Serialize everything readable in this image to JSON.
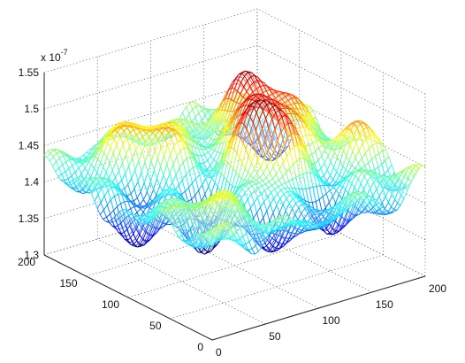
{
  "chart_data": {
    "type": "surface",
    "title": "",
    "xlabel": "",
    "ylabel": "",
    "zlabel": "",
    "x_range": [
      0,
      200
    ],
    "y_range": [
      0,
      200
    ],
    "z_range": [
      1.3,
      1.55
    ],
    "x_ticks": [
      "0",
      "50",
      "100",
      "150",
      "200"
    ],
    "y_ticks": [
      "0",
      "50",
      "100",
      "150",
      "200"
    ],
    "z_ticks": [
      "1.3",
      "1.35",
      "1.4",
      "1.45",
      "1.5",
      "1.55"
    ],
    "z_multiplier_base": "x 10",
    "z_multiplier_exponent": "-7",
    "grid": true,
    "colormap": "jet",
    "z_base": 1.425,
    "peaks": [
      {
        "x": 125,
        "y": 105,
        "height": 0.095
      },
      {
        "x": 150,
        "y": 150,
        "height": 0.07
      },
      {
        "x": 112,
        "y": 72,
        "height": 0.065
      },
      {
        "x": 60,
        "y": 165,
        "height": 0.05
      },
      {
        "x": 165,
        "y": 120,
        "height": 0.045
      },
      {
        "x": 40,
        "y": 50,
        "height": 0.04
      },
      {
        "x": 180,
        "y": 60,
        "height": 0.04
      },
      {
        "x": 85,
        "y": 140,
        "height": 0.035
      }
    ],
    "valleys": [
      {
        "x": 60,
        "y": 80,
        "depth": 0.07
      },
      {
        "x": 95,
        "y": 40,
        "depth": 0.06
      },
      {
        "x": 20,
        "y": 120,
        "depth": 0.05
      },
      {
        "x": 150,
        "y": 40,
        "depth": 0.045
      },
      {
        "x": 100,
        "y": 120,
        "depth": 0.04
      },
      {
        "x": 190,
        "y": 180,
        "depth": 0.04
      }
    ]
  }
}
